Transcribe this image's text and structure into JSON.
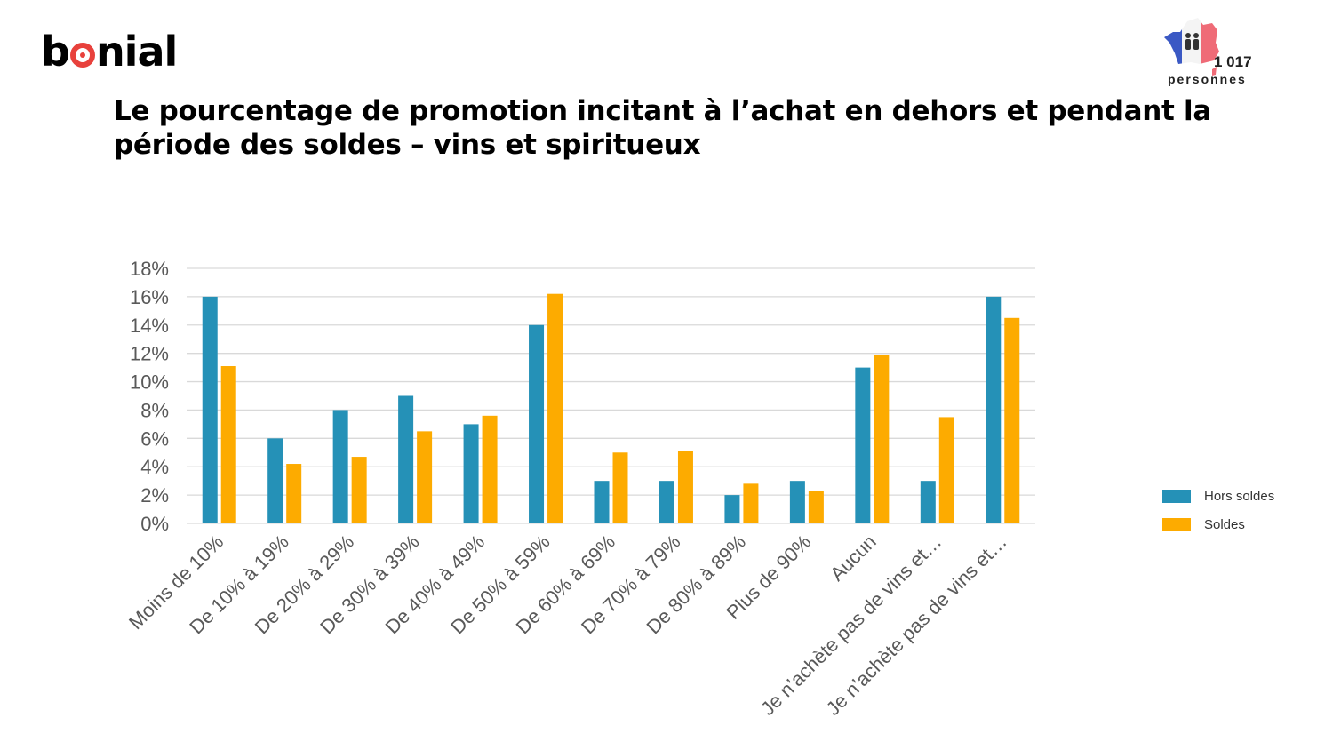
{
  "brand": {
    "logo_text_before": "b",
    "logo_text_after": "nial"
  },
  "badge": {
    "count": "1 017",
    "label": "personnes",
    "icon": "france-map-people-icon"
  },
  "title": "Le pourcentage de promotion incitant à l’achat en dehors et pendant la période des soldes – vins et spiritueux",
  "colors": {
    "hors_soldes": "#2591b7",
    "soldes": "#fdab00",
    "grid": "#d9d9d9",
    "tick": "#595959",
    "brand_red": "#e8413c"
  },
  "chart_data": {
    "type": "bar",
    "title": "",
    "xlabel": "",
    "ylabel": "",
    "ylim": [
      0,
      18
    ],
    "yticks": [
      "0%",
      "2%",
      "4%",
      "6%",
      "8%",
      "10%",
      "12%",
      "14%",
      "16%",
      "18%"
    ],
    "grid": true,
    "legend_position": "right",
    "categories": [
      "Moins de 10%",
      "De 10% à 19%",
      "De 20% à 29%",
      "De 30% à 39%",
      "De 40% à 49%",
      "De 50% à 59%",
      "De 60% à 69%",
      "De 70% à 79%",
      "De 80% à 89%",
      "Plus de 90%",
      "Aucun",
      "Je n’achète pas de vins et…",
      "Je n’achète pas de vins et…"
    ],
    "series": [
      {
        "name": "Hors soldes",
        "values": [
          16,
          6,
          8,
          9,
          7,
          14,
          3,
          3,
          2,
          3,
          11,
          3,
          16
        ]
      },
      {
        "name": "Soldes",
        "values": [
          11.1,
          4.2,
          4.7,
          6.5,
          7.6,
          16.2,
          5.0,
          5.1,
          2.8,
          2.3,
          11.9,
          7.5,
          14.5
        ]
      }
    ]
  }
}
